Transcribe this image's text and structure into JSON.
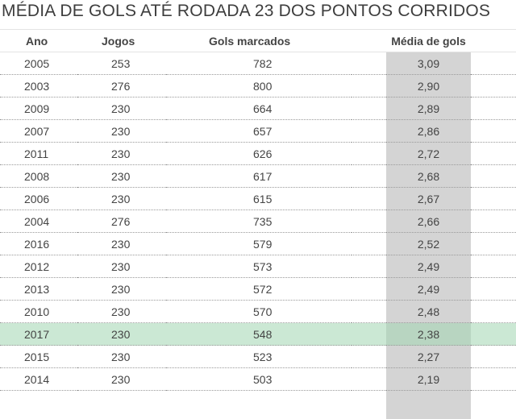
{
  "chart_data": {
    "type": "table",
    "title": "MÉDIA DE GOLS ATÉ RODADA 23 DOS PONTOS CORRIDOS",
    "columns": [
      "Ano",
      "Jogos",
      "Gols marcados",
      "Média de gols"
    ],
    "rows": [
      {
        "ano": "2005",
        "jogos": "253",
        "gols": "782",
        "media": "3,09"
      },
      {
        "ano": "2003",
        "jogos": "276",
        "gols": "800",
        "media": "2,90"
      },
      {
        "ano": "2009",
        "jogos": "230",
        "gols": "664",
        "media": "2,89"
      },
      {
        "ano": "2007",
        "jogos": "230",
        "gols": "657",
        "media": "2,86"
      },
      {
        "ano": "2011",
        "jogos": "230",
        "gols": "626",
        "media": "2,72"
      },
      {
        "ano": "2008",
        "jogos": "230",
        "gols": "617",
        "media": "2,68"
      },
      {
        "ano": "2006",
        "jogos": "230",
        "gols": "615",
        "media": "2,67"
      },
      {
        "ano": "2004",
        "jogos": "276",
        "gols": "735",
        "media": "2,66"
      },
      {
        "ano": "2016",
        "jogos": "230",
        "gols": "579",
        "media": "2,52"
      },
      {
        "ano": "2012",
        "jogos": "230",
        "gols": "573",
        "media": "2,49"
      },
      {
        "ano": "2013",
        "jogos": "230",
        "gols": "572",
        "media": "2,49"
      },
      {
        "ano": "2010",
        "jogos": "230",
        "gols": "570",
        "media": "2,48"
      },
      {
        "ano": "2017",
        "jogos": "230",
        "gols": "548",
        "media": "2,38"
      },
      {
        "ano": "2015",
        "jogos": "230",
        "gols": "523",
        "media": "2,27"
      },
      {
        "ano": "2014",
        "jogos": "230",
        "gols": "503",
        "media": "2,19"
      }
    ],
    "highlighted_row": "2017",
    "highlighted_column": "Média de gols",
    "colors": {
      "highlight_row": "#c8e6d0",
      "highlight_column": "#d4d4d4",
      "text": "#444444"
    }
  }
}
